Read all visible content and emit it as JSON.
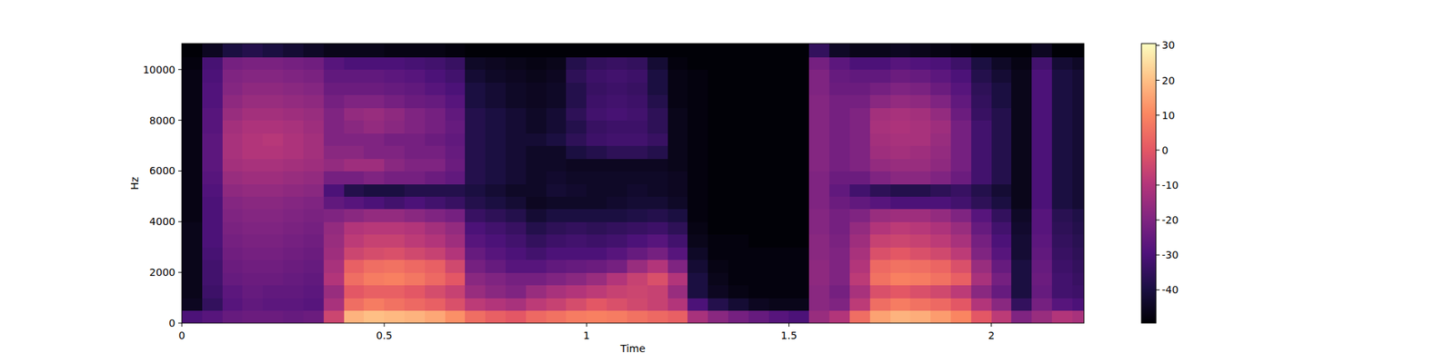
{
  "chart_data": {
    "type": "heatmap",
    "xlabel": "Time",
    "ylabel": "Hz",
    "xlim": [
      0,
      2.229
    ],
    "ylim": [
      0,
      11025
    ],
    "xticks": [
      0,
      0.5,
      1,
      1.5,
      2
    ],
    "yticks": [
      0,
      2000,
      4000,
      6000,
      8000,
      10000
    ],
    "grid": false,
    "colorbar": {
      "range": [
        -49.5,
        30.5
      ],
      "ticks": [
        -40,
        -30,
        -20,
        -10,
        0,
        10,
        20,
        30
      ]
    },
    "x": [
      0,
      0.05,
      0.1,
      0.15,
      0.2,
      0.25,
      0.3,
      0.35,
      0.4,
      0.45,
      0.5,
      0.55,
      0.6,
      0.65,
      0.7,
      0.75,
      0.8,
      0.85,
      0.9,
      0.95,
      1,
      1.05,
      1.1,
      1.15,
      1.2,
      1.25,
      1.3,
      1.35,
      1.4,
      1.45,
      1.5,
      1.55,
      1.6,
      1.65,
      1.7,
      1.75,
      1.8,
      1.85,
      1.9,
      1.95,
      2,
      2.05,
      2.1,
      2.15,
      2.2
    ],
    "y": [
      0,
      500,
      1000,
      1500,
      2000,
      2500,
      3000,
      3500,
      4000,
      4500,
      5000,
      5500,
      6000,
      6500,
      7000,
      7500,
      8000,
      8500,
      9000,
      9500,
      10000,
      10500
    ],
    "values": [
      [
        -30,
        -28,
        -25,
        -24,
        -24,
        -25,
        -24,
        -5,
        18,
        20,
        19,
        18,
        16,
        12,
        5,
        2,
        0,
        4,
        6,
        8,
        9,
        8,
        6,
        4,
        2,
        -12,
        -18,
        -22,
        -25,
        -28,
        -30,
        -15,
        -10,
        5,
        15,
        18,
        17,
        14,
        10,
        0,
        -8,
        -20,
        -15,
        -10,
        -12
      ],
      [
        -45,
        -35,
        -28,
        -26,
        -27,
        -27,
        -28,
        -12,
        5,
        8,
        6,
        4,
        2,
        -2,
        -8,
        -10,
        -12,
        -8,
        -6,
        -3,
        0,
        -2,
        -4,
        -6,
        -10,
        -30,
        -38,
        -42,
        -45,
        -46,
        -46,
        -18,
        -20,
        -8,
        5,
        8,
        6,
        4,
        0,
        -10,
        -18,
        -35,
        -22,
        -28,
        -30
      ],
      [
        -46,
        -33,
        -27,
        -25,
        -26,
        -26,
        -27,
        -15,
        0,
        2,
        2,
        0,
        -3,
        -6,
        -15,
        -18,
        -20,
        -15,
        -12,
        -10,
        -8,
        -6,
        -5,
        -6,
        -15,
        -40,
        -45,
        -47,
        -48,
        -48,
        -48,
        -18,
        -22,
        -12,
        -2,
        0,
        -2,
        -4,
        -8,
        -18,
        -25,
        -40,
        -25,
        -32,
        -33
      ],
      [
        -46,
        -32,
        -25,
        -24,
        -24,
        -25,
        -26,
        -10,
        5,
        8,
        9,
        7,
        4,
        0,
        -18,
        -20,
        -22,
        -22,
        -20,
        -18,
        -15,
        -10,
        -6,
        -2,
        -10,
        -40,
        -46,
        -48,
        -48,
        -48,
        -48,
        -17,
        -20,
        -8,
        6,
        9,
        8,
        6,
        2,
        -12,
        -22,
        -40,
        -24,
        -32,
        -34
      ],
      [
        -46,
        -32,
        -24,
        -23,
        -23,
        -24,
        -25,
        -12,
        2,
        5,
        6,
        4,
        2,
        -4,
        -22,
        -25,
        -28,
        -28,
        -26,
        -25,
        -24,
        -22,
        -15,
        -10,
        -20,
        -42,
        -47,
        -48,
        -48,
        -48,
        -48,
        -17,
        -20,
        -10,
        4,
        6,
        5,
        3,
        -2,
        -15,
        -25,
        -40,
        -25,
        -33,
        -35
      ],
      [
        -46,
        -31,
        -23,
        -22,
        -22,
        -23,
        -24,
        -14,
        -5,
        -3,
        -2,
        -4,
        -6,
        -10,
        -25,
        -28,
        -30,
        -32,
        -30,
        -30,
        -30,
        -28,
        -25,
        -22,
        -28,
        -44,
        -48,
        -48,
        -48,
        -48,
        -48,
        -18,
        -20,
        -12,
        -2,
        0,
        -2,
        -4,
        -8,
        -20,
        -28,
        -42,
        -26,
        -34,
        -36
      ],
      [
        -46,
        -30,
        -22,
        -21,
        -21,
        -22,
        -23,
        -15,
        -8,
        -6,
        -6,
        -8,
        -10,
        -14,
        -28,
        -30,
        -32,
        -35,
        -33,
        -32,
        -33,
        -32,
        -30,
        -28,
        -32,
        -46,
        -48,
        -48,
        -49,
        -49,
        -49,
        -18,
        -21,
        -14,
        -6,
        -5,
        -6,
        -8,
        -12,
        -22,
        -30,
        -42,
        -27,
        -35,
        -37
      ],
      [
        -46,
        -30,
        -21,
        -20,
        -20,
        -21,
        -22,
        -16,
        -10,
        -9,
        -9,
        -10,
        -13,
        -16,
        -30,
        -32,
        -34,
        -38,
        -36,
        -35,
        -36,
        -35,
        -34,
        -33,
        -36,
        -47,
        -49,
        -49,
        -49,
        -49,
        -49,
        -19,
        -22,
        -16,
        -10,
        -8,
        -9,
        -11,
        -15,
        -25,
        -32,
        -43,
        -28,
        -36,
        -38
      ],
      [
        -47,
        -30,
        -20,
        -19,
        -19,
        -20,
        -21,
        -20,
        -18,
        -16,
        -16,
        -18,
        -20,
        -22,
        -34,
        -36,
        -38,
        -42,
        -40,
        -40,
        -40,
        -40,
        -39,
        -38,
        -40,
        -48,
        -49,
        -49,
        -49,
        -49,
        -49,
        -19,
        -22,
        -20,
        -15,
        -14,
        -14,
        -16,
        -20,
        -28,
        -35,
        -44,
        -28,
        -37,
        -39
      ],
      [
        -47,
        -30,
        -19,
        -18,
        -18,
        -19,
        -20,
        -26,
        -28,
        -30,
        -32,
        -30,
        -32,
        -34,
        -38,
        -40,
        -42,
        -45,
        -44,
        -44,
        -44,
        -43,
        -42,
        -42,
        -44,
        -48,
        -49,
        -49,
        -49,
        -49,
        -49,
        -20,
        -24,
        -26,
        -28,
        -30,
        -30,
        -30,
        -32,
        -36,
        -40,
        -46,
        -30,
        -40,
        -42
      ],
      [
        -47,
        -29,
        -17,
        -16,
        -16,
        -17,
        -18,
        -30,
        -38,
        -40,
        -40,
        -38,
        -38,
        -38,
        -40,
        -42,
        -44,
        -44,
        -42,
        -43,
        -44,
        -44,
        -43,
        -44,
        -45,
        -48,
        -49,
        -49,
        -49,
        -49,
        -49,
        -20,
        -26,
        -32,
        -36,
        -38,
        -38,
        -36,
        -34,
        -38,
        -42,
        -46,
        -30,
        -40,
        -42
      ],
      [
        -47,
        -28,
        -15,
        -14,
        -14,
        -15,
        -16,
        -22,
        -22,
        -20,
        -22,
        -22,
        -24,
        -26,
        -38,
        -40,
        -42,
        -44,
        -43,
        -44,
        -44,
        -44,
        -44,
        -44,
        -45,
        -48,
        -49,
        -49,
        -49,
        -49,
        -49,
        -20,
        -24,
        -24,
        -20,
        -18,
        -18,
        -20,
        -24,
        -32,
        -38,
        -46,
        -30,
        -40,
        -42
      ],
      [
        -47,
        -27,
        -13,
        -12,
        -12,
        -13,
        -14,
        -16,
        -14,
        -14,
        -18,
        -20,
        -20,
        -24,
        -38,
        -40,
        -42,
        -44,
        -44,
        -45,
        -45,
        -45,
        -45,
        -45,
        -46,
        -48,
        -49,
        -49,
        -49,
        -49,
        -49,
        -19,
        -22,
        -20,
        -16,
        -15,
        -15,
        -17,
        -22,
        -32,
        -38,
        -46,
        -30,
        -40,
        -42
      ],
      [
        -47,
        -27,
        -12,
        -10,
        -10,
        -11,
        -13,
        -18,
        -18,
        -20,
        -20,
        -22,
        -22,
        -25,
        -38,
        -40,
        -42,
        -44,
        -44,
        -40,
        -38,
        -36,
        -36,
        -38,
        -46,
        -48,
        -49,
        -49,
        -49,
        -49,
        -49,
        -19,
        -22,
        -20,
        -14,
        -13,
        -14,
        -16,
        -22,
        -32,
        -38,
        -46,
        -30,
        -40,
        -42
      ],
      [
        -47,
        -27,
        -12,
        -10,
        -9,
        -11,
        -13,
        -20,
        -20,
        -20,
        -22,
        -22,
        -24,
        -26,
        -38,
        -40,
        -42,
        -42,
        -40,
        -36,
        -33,
        -32,
        -32,
        -34,
        -46,
        -48,
        -49,
        -49,
        -49,
        -49,
        -49,
        -19,
        -22,
        -20,
        -13,
        -12,
        -12,
        -15,
        -22,
        -32,
        -38,
        -46,
        -30,
        -40,
        -42
      ],
      [
        -47,
        -28,
        -13,
        -11,
        -11,
        -12,
        -14,
        -20,
        -18,
        -16,
        -18,
        -20,
        -22,
        -25,
        -38,
        -40,
        -42,
        -44,
        -42,
        -38,
        -34,
        -33,
        -33,
        -36,
        -46,
        -48,
        -49,
        -49,
        -49,
        -49,
        -49,
        -19,
        -22,
        -20,
        -12,
        -11,
        -12,
        -14,
        -22,
        -32,
        -38,
        -46,
        -30,
        -40,
        -42
      ],
      [
        -47,
        -28,
        -15,
        -13,
        -13,
        -14,
        -15,
        -20,
        -16,
        -15,
        -17,
        -20,
        -22,
        -26,
        -38,
        -40,
        -42,
        -44,
        -42,
        -36,
        -32,
        -31,
        -32,
        -36,
        -46,
        -48,
        -49,
        -49,
        -49,
        -49,
        -49,
        -19,
        -22,
        -20,
        -13,
        -12,
        -13,
        -16,
        -24,
        -34,
        -38,
        -46,
        -30,
        -40,
        -42
      ],
      [
        -47,
        -29,
        -17,
        -15,
        -15,
        -16,
        -17,
        -22,
        -20,
        -20,
        -22,
        -24,
        -25,
        -28,
        -40,
        -42,
        -44,
        -45,
        -44,
        -38,
        -33,
        -32,
        -33,
        -38,
        -47,
        -48,
        -49,
        -49,
        -49,
        -49,
        -49,
        -19,
        -22,
        -22,
        -18,
        -16,
        -17,
        -20,
        -26,
        -35,
        -40,
        -46,
        -30,
        -40,
        -42
      ],
      [
        -47,
        -29,
        -19,
        -17,
        -17,
        -18,
        -19,
        -24,
        -24,
        -24,
        -25,
        -26,
        -28,
        -30,
        -40,
        -42,
        -44,
        -45,
        -44,
        -38,
        -34,
        -33,
        -34,
        -40,
        -47,
        -48,
        -49,
        -49,
        -49,
        -49,
        -49,
        -20,
        -24,
        -24,
        -22,
        -20,
        -21,
        -24,
        -28,
        -36,
        -40,
        -46,
        -30,
        -40,
        -42
      ],
      [
        -47,
        -30,
        -20,
        -19,
        -19,
        -20,
        -21,
        -26,
        -26,
        -26,
        -27,
        -28,
        -30,
        -32,
        -42,
        -44,
        -45,
        -46,
        -45,
        -36,
        -33,
        -32,
        -33,
        -40,
        -47,
        -48,
        -49,
        -49,
        -49,
        -49,
        -49,
        -20,
        -25,
        -26,
        -26,
        -24,
        -25,
        -27,
        -30,
        -38,
        -42,
        -46,
        -30,
        -40,
        -42
      ],
      [
        -48,
        -31,
        -22,
        -21,
        -21,
        -22,
        -23,
        -28,
        -30,
        -30,
        -30,
        -31,
        -32,
        -34,
        -44,
        -45,
        -46,
        -47,
        -46,
        -38,
        -35,
        -34,
        -35,
        -42,
        -48,
        -49,
        -49,
        -49,
        -49,
        -49,
        -49,
        -22,
        -27,
        -30,
        -30,
        -28,
        -29,
        -30,
        -33,
        -40,
        -44,
        -47,
        -32,
        -42,
        -44
      ],
      [
        -49,
        -45,
        -40,
        -38,
        -40,
        -42,
        -44,
        -46,
        -46,
        -46,
        -47,
        -47,
        -47,
        -48,
        -49,
        -49,
        -49,
        -49,
        -49,
        -49,
        -49,
        -49,
        -49,
        -49,
        -49,
        -49,
        -49,
        -49,
        -49,
        -49,
        -49,
        -35,
        -44,
        -46,
        -46,
        -45,
        -46,
        -47,
        -48,
        -49,
        -49,
        -49,
        -45,
        -49,
        -49
      ]
    ]
  }
}
